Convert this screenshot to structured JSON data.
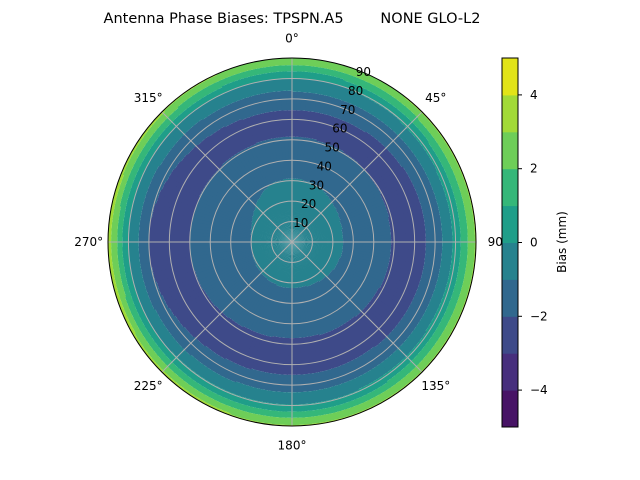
{
  "chart_data": {
    "type": "polar-contour",
    "title": "Antenna Phase Biases: TPSPN.A5        NONE GLO-L2",
    "angular_ticks": [
      "0°",
      "45°",
      "90",
      "135°",
      "180°",
      "225°",
      "270°",
      "315°"
    ],
    "radial_ticks": [
      "10",
      "20",
      "30",
      "40",
      "50",
      "60",
      "70",
      "80",
      "90"
    ],
    "radial_range": [
      0,
      90
    ],
    "azimuth_direction": "clockwise",
    "azimuth_zero": "top",
    "grid": true,
    "zenith": [
      0,
      10,
      20,
      30,
      40,
      50,
      60,
      70,
      80,
      90
    ],
    "series": [
      {
        "azimuth": 0,
        "values": [
          -0.4,
          -0.5,
          -0.7,
          -0.95,
          -1.5,
          -1.95,
          -2.3,
          -1.6,
          0.0,
          3.0
        ]
      },
      {
        "azimuth": 90,
        "values": [
          -0.4,
          -0.5,
          -0.8,
          -1.2,
          -1.7,
          -2.05,
          -2.4,
          -1.7,
          0.3,
          3.2
        ]
      },
      {
        "azimuth": 180,
        "values": [
          -0.4,
          -0.6,
          -0.9,
          -1.3,
          -1.75,
          -2.1,
          -2.4,
          -1.6,
          0.1,
          3.2
        ]
      },
      {
        "azimuth": 270,
        "values": [
          -0.4,
          -0.6,
          -1.0,
          -1.35,
          -1.7,
          -2.0,
          -2.4,
          -2.0,
          0.0,
          3.5
        ]
      }
    ],
    "colorbar": {
      "label": "Bias (mm)",
      "levels": [
        -5,
        -4,
        -3,
        -2,
        -1,
        0,
        1,
        2,
        3,
        4,
        5
      ],
      "ticks": [
        "4",
        "2",
        "0",
        "−2",
        "−4"
      ],
      "tick_values": [
        4,
        2,
        0,
        -2,
        -4
      ],
      "colors": [
        "#471365",
        "#472f7d",
        "#3e4a89",
        "#31688e",
        "#26828e",
        "#1f9e89",
        "#35b779",
        "#6ece58",
        "#a2da37",
        "#e2e418"
      ]
    }
  }
}
